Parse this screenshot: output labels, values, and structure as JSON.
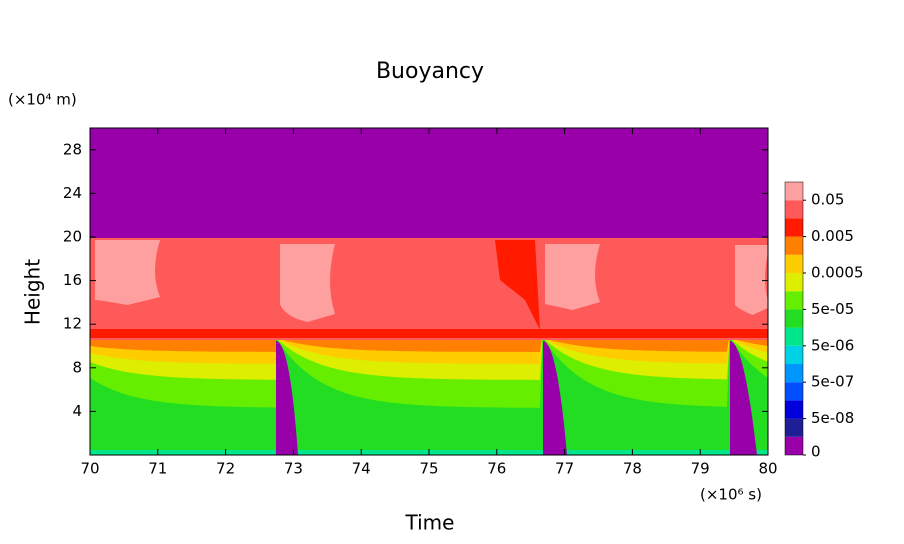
{
  "chart_data": {
    "type": "contour",
    "title": "Buoyancy",
    "xlabel": "Time",
    "ylabel": "Height",
    "x_unit": "(×10⁶ s)",
    "y_unit": "(×10⁴ m)",
    "xlim": [
      70,
      80
    ],
    "xticks": [
      70,
      71,
      72,
      73,
      74,
      75,
      76,
      77,
      78,
      79,
      80
    ],
    "ylim": [
      0,
      30
    ],
    "yticks": [
      4,
      8,
      12,
      16,
      20,
      24,
      28
    ],
    "colorbar": {
      "colors": [
        "#9900aa",
        "#1e1e96",
        "#0000dc",
        "#0050ff",
        "#0096ff",
        "#00d2e6",
        "#00e68c",
        "#22dd22",
        "#66ee00",
        "#ddee00",
        "#ffcc00",
        "#ff8000",
        "#ff1a00",
        "#ff5a5a",
        "#ffa0a0"
      ],
      "ticks": [
        0,
        {
          "value": 5e-08,
          "label": "5e-08"
        },
        {
          "value": 5e-07,
          "label": "5e-07"
        },
        {
          "value": 5e-06,
          "label": "5e-06"
        },
        {
          "value": 5e-05,
          "label": "5e-05"
        },
        0.0005,
        0.005,
        0.05
      ]
    }
  }
}
